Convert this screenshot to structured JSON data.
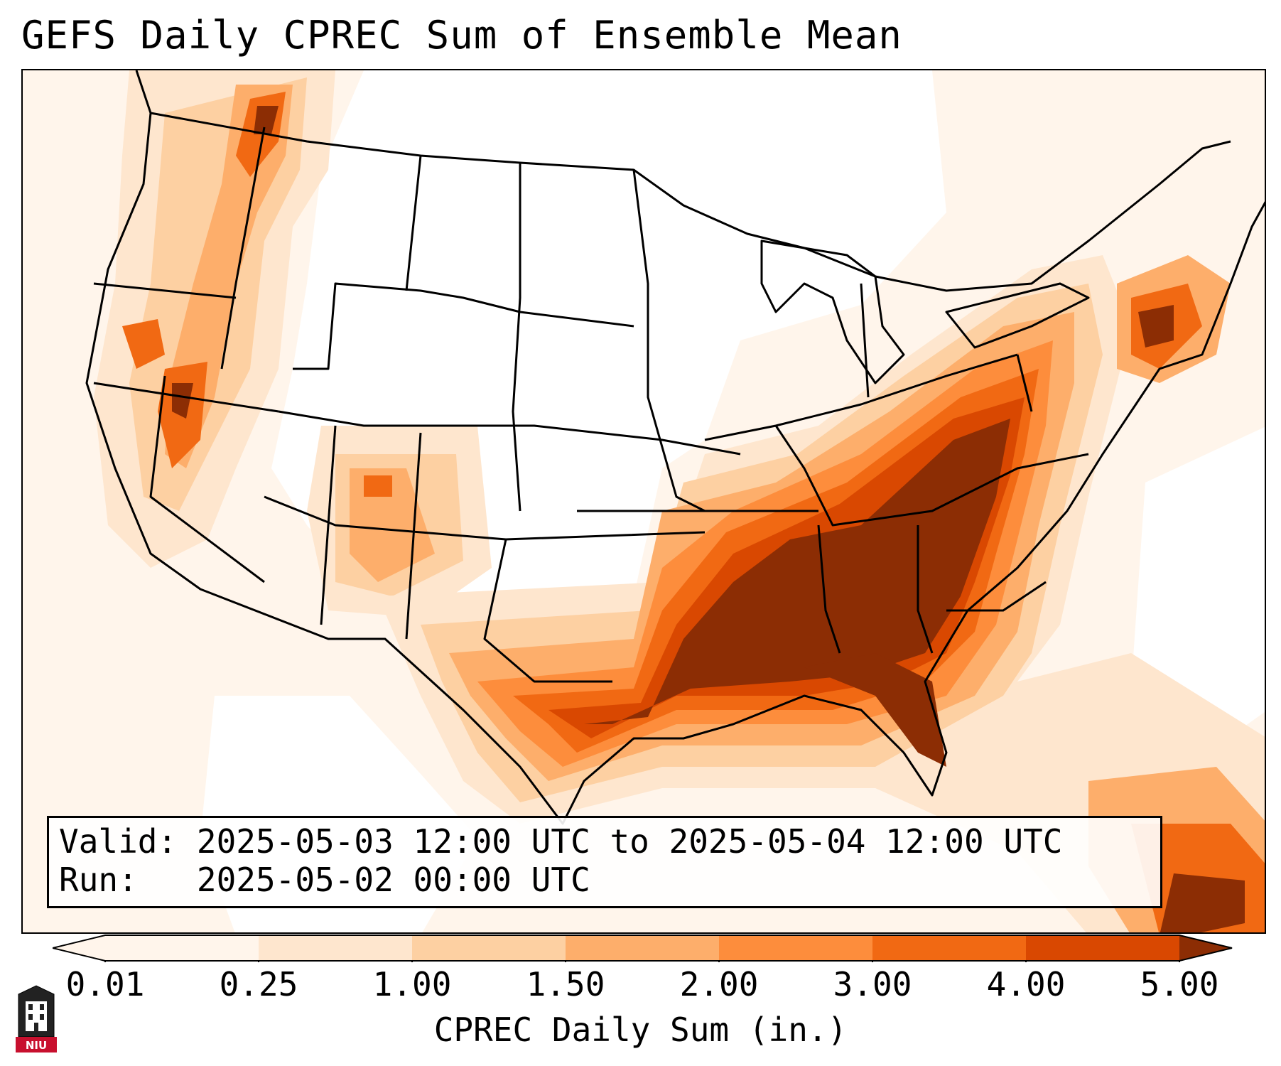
{
  "title": "GEFS Daily CPREC Sum of Ensemble Mean",
  "info": {
    "valid_label": "Valid:",
    "valid_value": "2025-05-03 12:00 UTC to 2025-05-04 12:00 UTC",
    "run_label": "Run:",
    "run_value": "2025-05-02 00:00 UTC"
  },
  "colorbar": {
    "label": "CPREC Daily Sum (in.)",
    "ticks": [
      "0.01",
      "0.25",
      "1.00",
      "1.50",
      "2.00",
      "3.00",
      "4.00",
      "5.00"
    ],
    "colors": [
      "#fff5eb",
      "#fee6ce",
      "#fdd0a2",
      "#fdae6b",
      "#fd8d3c",
      "#f16913",
      "#d94801",
      "#8c2d04"
    ],
    "extend": "both"
  },
  "logo": {
    "text": "NIU",
    "icon": "university-tower-logo"
  },
  "map": {
    "projection": "lambert-conformal-conus",
    "heavy_region": "Southeastern US / Gulf Coast / Mid-Atlantic",
    "colors": {
      "trace": "#fff5eb",
      "light": "#fee6ce",
      "moderate": "#fdd0a2",
      "mid": "#fdae6b",
      "high": "#fd8d3c",
      "heavier": "#f16913",
      "intense": "#d94801",
      "extreme": "#8c2d04",
      "borders": "#000000"
    }
  }
}
